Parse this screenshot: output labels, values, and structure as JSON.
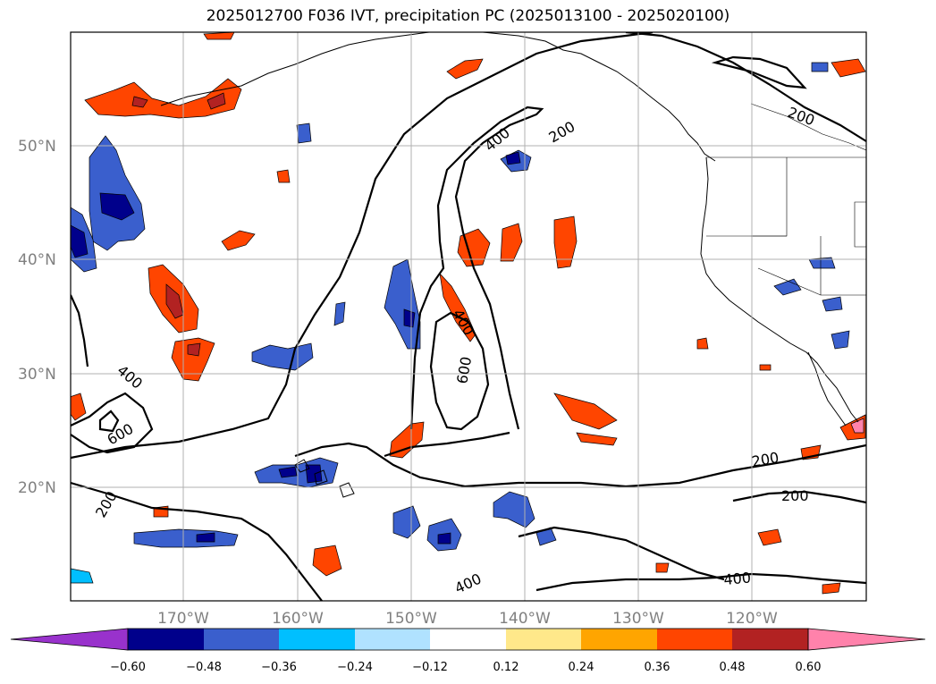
{
  "title": "2025012700 F036 IVT, precipitation PC (2025013100 - 2025020100)",
  "lat_labels": [
    "50°N",
    "40°N",
    "30°N",
    "20°N"
  ],
  "lon_labels": [
    "170°W",
    "160°W",
    "150°W",
    "140°W",
    "130°W",
    "120°W"
  ],
  "extent": {
    "lon_min": -179.8,
    "lon_max": -109.8,
    "lat_min": 10,
    "lat_max": 60
  },
  "contour_labels": [
    "400",
    "200",
    "400",
    "200",
    "400",
    "600",
    "600",
    "400",
    "200",
    "200",
    "200",
    "400",
    "400"
  ],
  "colorbar": {
    "ticks": [
      "−0.60",
      "−0.48",
      "−0.36",
      "−0.24",
      "−0.12",
      "0.12",
      "0.24",
      "0.36",
      "0.48",
      "0.60"
    ],
    "colors": [
      "#9932cc",
      "#00008b",
      "#3a5fcd",
      "#00bfff",
      "#b0e2ff",
      "#ffffff",
      "#ffe88a",
      "#ffa500",
      "#ff4500",
      "#b22222",
      "#ff82ab"
    ]
  }
}
